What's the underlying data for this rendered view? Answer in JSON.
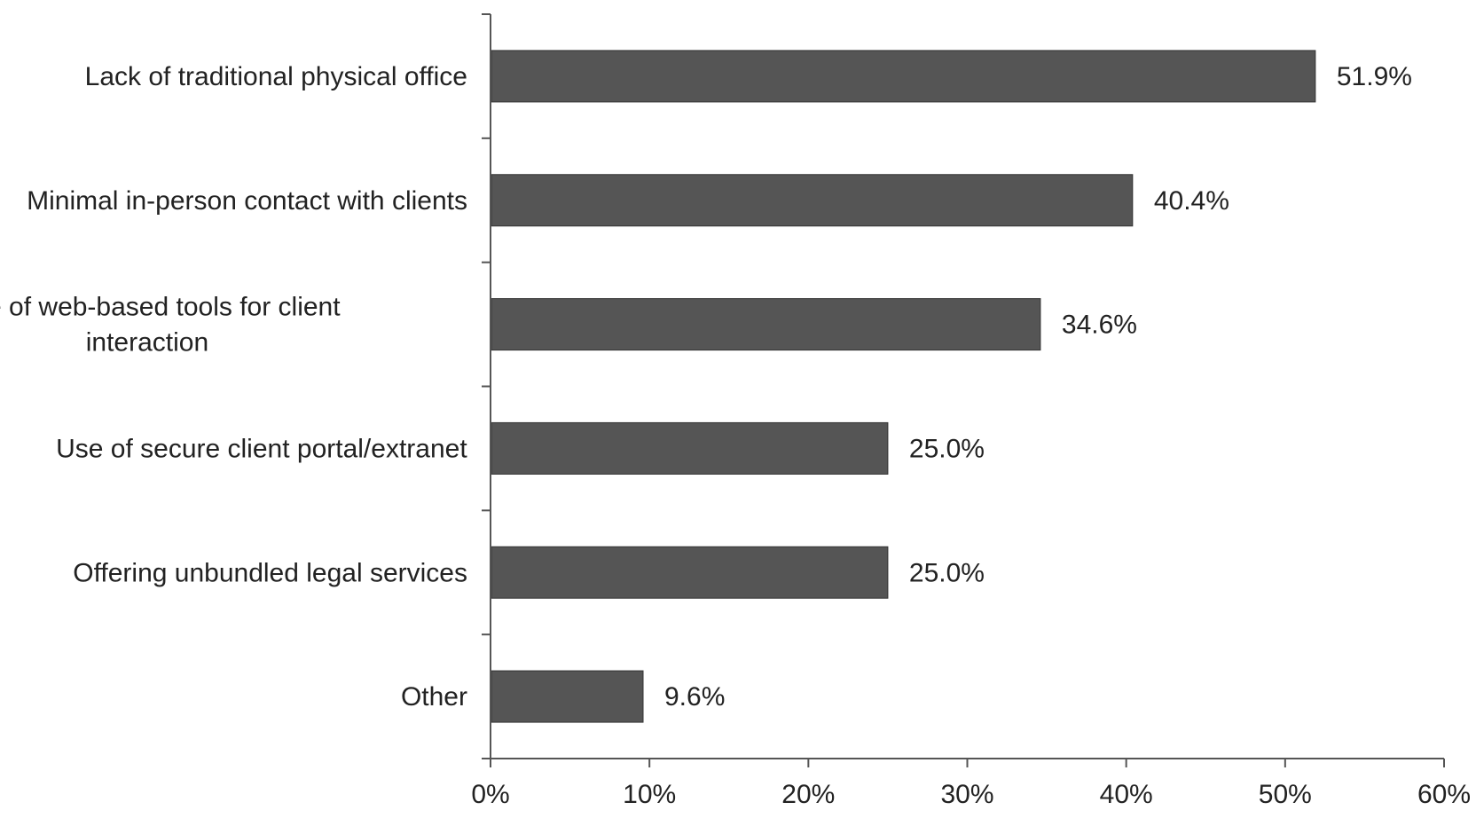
{
  "chart_data": {
    "type": "bar",
    "orientation": "horizontal",
    "categories": [
      "Lack of traditional physical office",
      "Minimal in-person contact with clients",
      "Use of web-based tools for client interaction",
      "Use of secure client portal/extranet",
      "Offering unbundled legal services",
      "Other"
    ],
    "category_lines": [
      [
        "Lack of traditional physical office"
      ],
      [
        "Minimal in-person contact with clients"
      ],
      [
        "Use of web-based tools for client",
        "interaction"
      ],
      [
        "Use of secure client portal/extranet"
      ],
      [
        "Offering unbundled legal services"
      ],
      [
        "Other"
      ]
    ],
    "values": [
      51.9,
      40.4,
      34.6,
      25.0,
      25.0,
      9.6
    ],
    "value_labels": [
      "51.9%",
      "40.4%",
      "34.6%",
      "25.0%",
      "25.0%",
      "9.6%"
    ],
    "xlim": [
      0,
      60
    ],
    "xticks": [
      0,
      10,
      20,
      30,
      40,
      50,
      60
    ],
    "xtick_labels": [
      "0%",
      "10%",
      "20%",
      "30%",
      "40%",
      "50%",
      "60%"
    ],
    "title": "",
    "xlabel": "",
    "ylabel": "",
    "grid": false,
    "legend": "none",
    "colors": {
      "bar": "#555555",
      "bar_edge": "#333333",
      "axis": "#555555",
      "text": "#222222"
    }
  }
}
